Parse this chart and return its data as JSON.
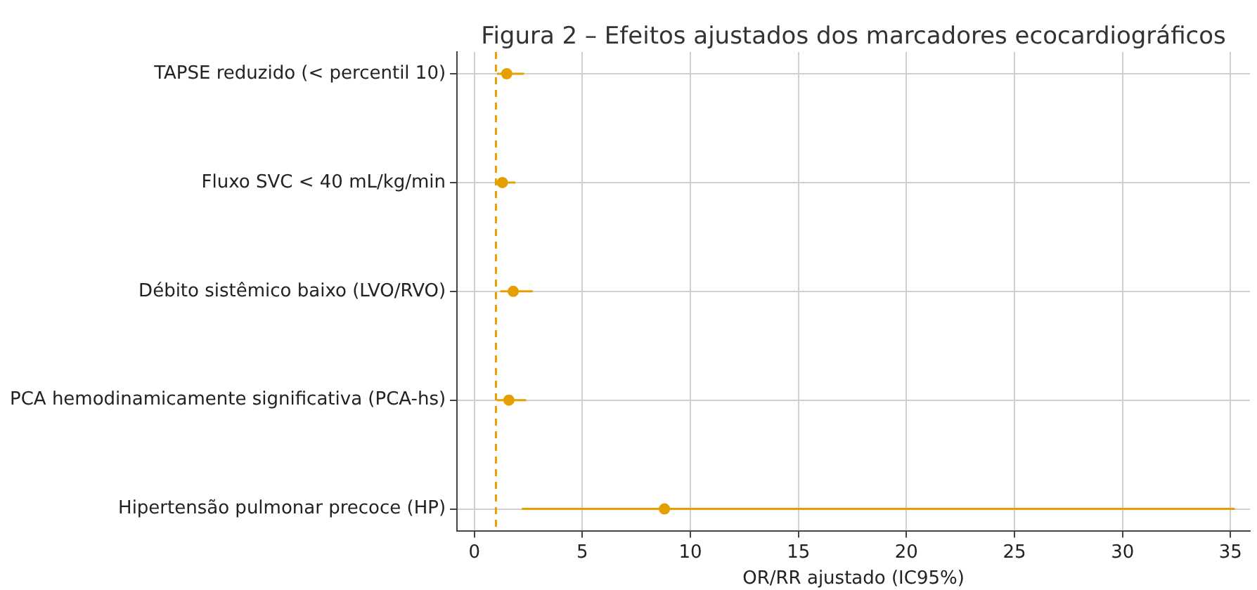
{
  "chart_data": {
    "type": "scatter",
    "orientation": "horizontal",
    "title": "Figura 2 – Efeitos ajustados dos marcadores ecocardiográficos",
    "xlabel": "OR/RR ajustado (IC95%)",
    "categories": [
      "TAPSE reduzido (< percentil 10)",
      "Fluxo SVC < 40 mL/kg/min",
      "Débito sistêmico baixo (LVO/RVO)",
      "PCA hemodinamicamente significativa (PCA-hs)",
      "Hipertensão pulmonar precoce (HP)"
    ],
    "values": [
      1.5,
      1.3,
      1.8,
      1.6,
      8.8
    ],
    "errors": [
      [
        1.05,
        2.3
      ],
      [
        0.95,
        1.9
      ],
      [
        1.2,
        2.7
      ],
      [
        1.05,
        2.4
      ],
      [
        2.2,
        35.2
      ]
    ],
    "color": "#e69f00",
    "xlim": [
      -0.8,
      35.9
    ],
    "xticks": [
      0,
      5,
      10,
      15,
      20,
      25,
      30,
      35
    ],
    "ref_lines": [
      {
        "axis": "x",
        "value": 1,
        "color": "#e69f00",
        "line_style": "dashed"
      }
    ],
    "grid": true,
    "legend": false,
    "marker": "circle"
  }
}
